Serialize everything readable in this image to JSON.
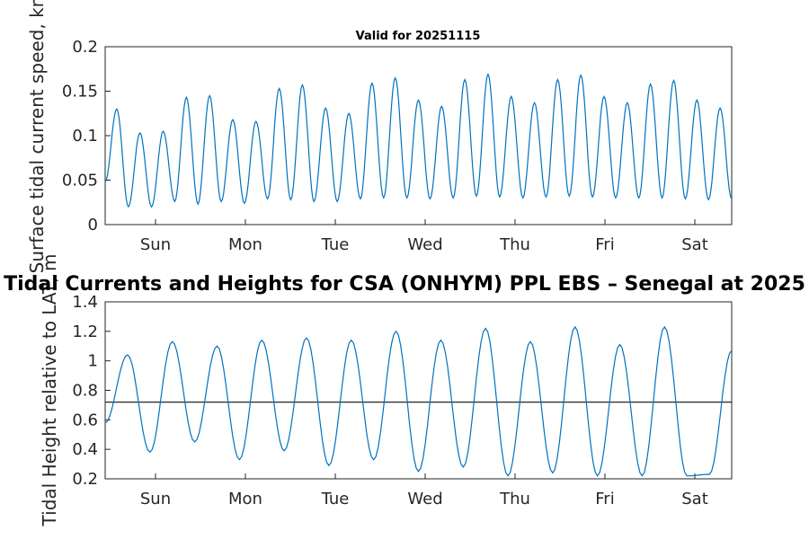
{
  "chart_data": [
    {
      "type": "line",
      "title": "Valid for 20251115",
      "ylabel": "Surface tidal current speed, kn",
      "xlabel": "",
      "categories": [
        "Sun",
        "Mon",
        "Tue",
        "Wed",
        "Thu",
        "Fri",
        "Sat"
      ],
      "x_range_days": [
        0,
        7
      ],
      "ylim": [
        0,
        0.2
      ],
      "yticks": [
        "0",
        "0.05",
        "0.1",
        "0.15",
        "0.2"
      ],
      "series": [
        {
          "color": "#0072BD",
          "peaks": [
            0.13,
            0.103,
            0.105,
            0.143,
            0.145,
            0.118,
            0.116,
            0.153,
            0.157,
            0.131,
            0.125,
            0.159,
            0.165,
            0.14,
            0.133,
            0.163,
            0.169,
            0.144,
            0.137,
            0.163,
            0.168,
            0.144,
            0.137,
            0.158,
            0.162,
            0.14,
            0.131
          ],
          "troughs": [
            0.048,
            0.02,
            0.02,
            0.026,
            0.023,
            0.026,
            0.024,
            0.029,
            0.028,
            0.026,
            0.026,
            0.029,
            0.03,
            0.03,
            0.029,
            0.03,
            0.032,
            0.031,
            0.03,
            0.031,
            0.032,
            0.031,
            0.03,
            0.03,
            0.03,
            0.029,
            0.028,
            0.029
          ]
        }
      ]
    },
    {
      "type": "line",
      "title": "Tidal Currents and Heights for CSA (ONHYM) PPL EBS  – Senegal at 2025",
      "ylabel": "Tidal Height relative to LAT, m",
      "xlabel": "",
      "categories": [
        "Sun",
        "Mon",
        "Tue",
        "Wed",
        "Thu",
        "Fri",
        "Sat"
      ],
      "x_range_days": [
        0,
        7
      ],
      "ylim": [
        0.2,
        1.4
      ],
      "yticks": [
        "0.2",
        "0.4",
        "0.6",
        "0.8",
        "1",
        "1.2",
        "1.4"
      ],
      "reference_line": 0.72,
      "series": [
        {
          "color": "#0072BD",
          "peaks": [
            1.04,
            1.13,
            1.1,
            1.14,
            1.155,
            1.14,
            1.2,
            1.14,
            1.22,
            1.13,
            1.23,
            1.11,
            1.23
          ],
          "troughs": [
            0.58,
            0.38,
            0.45,
            0.33,
            0.39,
            0.29,
            0.33,
            0.25,
            0.28,
            0.22,
            0.24,
            0.22,
            0.22,
            0.22,
            0.23,
            1.07
          ]
        }
      ]
    }
  ]
}
